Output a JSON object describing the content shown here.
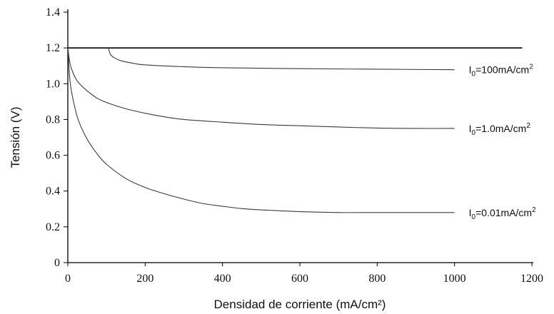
{
  "chart_data": {
    "type": "line",
    "xlabel": "Densidad de corriente (mA/cm²)",
    "ylabel": "Tensión (V)",
    "xlim": [
      0,
      1200
    ],
    "ylim": [
      0,
      1.4
    ],
    "x_ticks": [
      "0",
      "200",
      "400",
      "600",
      "800",
      "1000",
      "1200"
    ],
    "y_ticks": [
      "0",
      "0.2",
      "0.4",
      "0.6",
      "0.8",
      "1.0",
      "1.2",
      "1.4"
    ],
    "grid": false,
    "legend": "none",
    "reference_line": {
      "y": 1.2,
      "x_range": [
        0,
        1175
      ]
    },
    "series": [
      {
        "name": "I0=100mA/cm2",
        "x": [
          105,
          110,
          120,
          140,
          170,
          200,
          300,
          400,
          600,
          800,
          1000
        ],
        "y": [
          1.2,
          1.165,
          1.145,
          1.127,
          1.114,
          1.105,
          1.095,
          1.089,
          1.084,
          1.081,
          1.078
        ]
      },
      {
        "name": "I0=1.0mA/cm2",
        "x": [
          0,
          5,
          10,
          20,
          30,
          50,
          75,
          100,
          150,
          200,
          250,
          300,
          400,
          500,
          600,
          700,
          800,
          900,
          1000
        ],
        "y": [
          1.2,
          1.12,
          1.08,
          1.03,
          1.0,
          0.96,
          0.92,
          0.895,
          0.86,
          0.835,
          0.815,
          0.8,
          0.785,
          0.772,
          0.765,
          0.758,
          0.752,
          0.75,
          0.75
        ]
      },
      {
        "name": "I0=0.01mA/cm2",
        "x": [
          0,
          5,
          10,
          20,
          30,
          50,
          75,
          100,
          150,
          200,
          250,
          300,
          350,
          400,
          450,
          500,
          600,
          700,
          800,
          900,
          1000
        ],
        "y": [
          1.2,
          1.03,
          0.95,
          0.85,
          0.78,
          0.69,
          0.61,
          0.55,
          0.47,
          0.42,
          0.385,
          0.355,
          0.33,
          0.315,
          0.302,
          0.295,
          0.285,
          0.28,
          0.28,
          0.28,
          0.28
        ]
      }
    ],
    "curve_labels": [
      {
        "base": "I",
        "sub": "0",
        "text": "=100mA/cm",
        "sup": "2"
      },
      {
        "base": "I",
        "sub": "0",
        "text": "=1.0mA/cm",
        "sup": "2"
      },
      {
        "base": "I",
        "sub": "0",
        "text": "=0.01mA/cm",
        "sup": "2"
      }
    ]
  }
}
